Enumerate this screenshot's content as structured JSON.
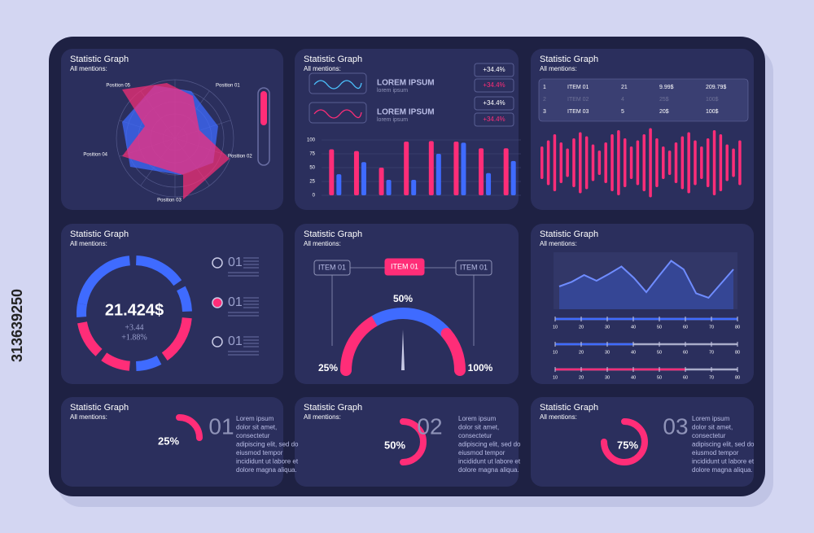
{
  "watermark_id": "313639250",
  "panels": [
    {
      "title": "Statistic Graph",
      "subtitle": "All mentions:"
    },
    {
      "title": "Statistic Graph",
      "subtitle": "All mentions:"
    },
    {
      "title": "Statistic Graph",
      "subtitle": "All mentions:"
    },
    {
      "title": "Statistic Graph",
      "subtitle": "All mentions:"
    },
    {
      "title": "Statistic Graph",
      "subtitle": "All mentions:"
    },
    {
      "title": "Statistic Graph",
      "subtitle": "All mentions:"
    },
    {
      "title": "Statistic Graph",
      "subtitle": "All mentions:"
    },
    {
      "title": "Statistic Graph",
      "subtitle": "All mentions:"
    },
    {
      "title": "Statistic Graph",
      "subtitle": "All mentions:"
    }
  ],
  "radar": {
    "labels": [
      "Position 01",
      "Position 02",
      "Position 03",
      "Position 04",
      "Position 05"
    ]
  },
  "bars": {
    "type": "bar",
    "legend": [
      {
        "title": "LOREM IPSUM",
        "sub": "lorem ipsum"
      },
      {
        "title": "LOREM IPSUM",
        "sub": "lorem ipsum"
      }
    ],
    "badges": [
      "+34.4%",
      "+34.4%",
      "+34.4%",
      "+34.4%"
    ],
    "ylim": [
      0,
      100
    ],
    "yticks": [
      0,
      25,
      50,
      75,
      100
    ],
    "series": [
      {
        "color": "#ff2d78",
        "values": [
          83,
          80,
          50,
          97,
          98,
          97,
          85,
          85
        ]
      },
      {
        "color": "#3f6bff",
        "values": [
          38,
          60,
          28,
          28,
          75,
          95,
          40,
          62
        ]
      }
    ]
  },
  "table": {
    "rows": [
      [
        "1",
        "ITEM 01",
        "21",
        "9.99$",
        "209.79$"
      ],
      [
        "2",
        "ITEM 02",
        "4",
        "25$",
        "100$"
      ],
      [
        "3",
        "ITEM 03",
        "5",
        "20$",
        "100$"
      ]
    ]
  },
  "wave": {
    "color": "#ff2d78",
    "values": [
      40,
      55,
      70,
      50,
      35,
      60,
      75,
      65,
      45,
      30,
      50,
      70,
      80,
      60,
      40,
      55,
      70,
      85,
      60,
      40,
      30,
      50,
      65,
      75,
      55,
      40,
      60,
      80,
      70,
      45,
      35,
      55
    ]
  },
  "donut": {
    "value": "21.424$",
    "changes": [
      "+3.44",
      "+1.88%"
    ],
    "legend": [
      "01",
      "01",
      "01"
    ]
  },
  "gauge": {
    "items": [
      "ITEM 01",
      "ITEM 01",
      "ITEM 01"
    ],
    "labels": [
      "25%",
      "50%",
      "100%"
    ]
  },
  "line": {
    "xticks": [
      10,
      20,
      30,
      40,
      50,
      60,
      70,
      80
    ],
    "xlim": [
      10,
      80
    ],
    "values": [
      40,
      48,
      60,
      50,
      62,
      75,
      55,
      30,
      58,
      85,
      70,
      28,
      20,
      45,
      70
    ],
    "sliders": [
      {
        "value": 80,
        "color": "#3f6bff"
      },
      {
        "value": 40,
        "color": "#3f6bff"
      },
      {
        "value": 60,
        "color": "#ff2d78"
      }
    ]
  },
  "progress": [
    {
      "value": 25,
      "label": "25%",
      "number": "01",
      "text": [
        "Lorem ipsum",
        "dolor sit amet,",
        "consectetur",
        "adipiscing elit, sed do",
        "eiusmod tempor",
        "incididunt ut labore et",
        "dolore magna aliqua."
      ]
    },
    {
      "value": 50,
      "label": "50%",
      "number": "02",
      "text": [
        "Lorem ipsum",
        "dolor sit amet,",
        "consectetur",
        "adipiscing elit, sed do",
        "eiusmod tempor",
        "incididunt ut labore et",
        "dolore magna aliqua."
      ]
    },
    {
      "value": 75,
      "label": "75%",
      "number": "03",
      "text": [
        "Lorem ipsum",
        "dolor sit amet,",
        "consectetur",
        "adipiscing elit, sed do",
        "eiusmod tempor",
        "incididunt ut labore et",
        "dolore magna aliqua."
      ]
    }
  ]
}
